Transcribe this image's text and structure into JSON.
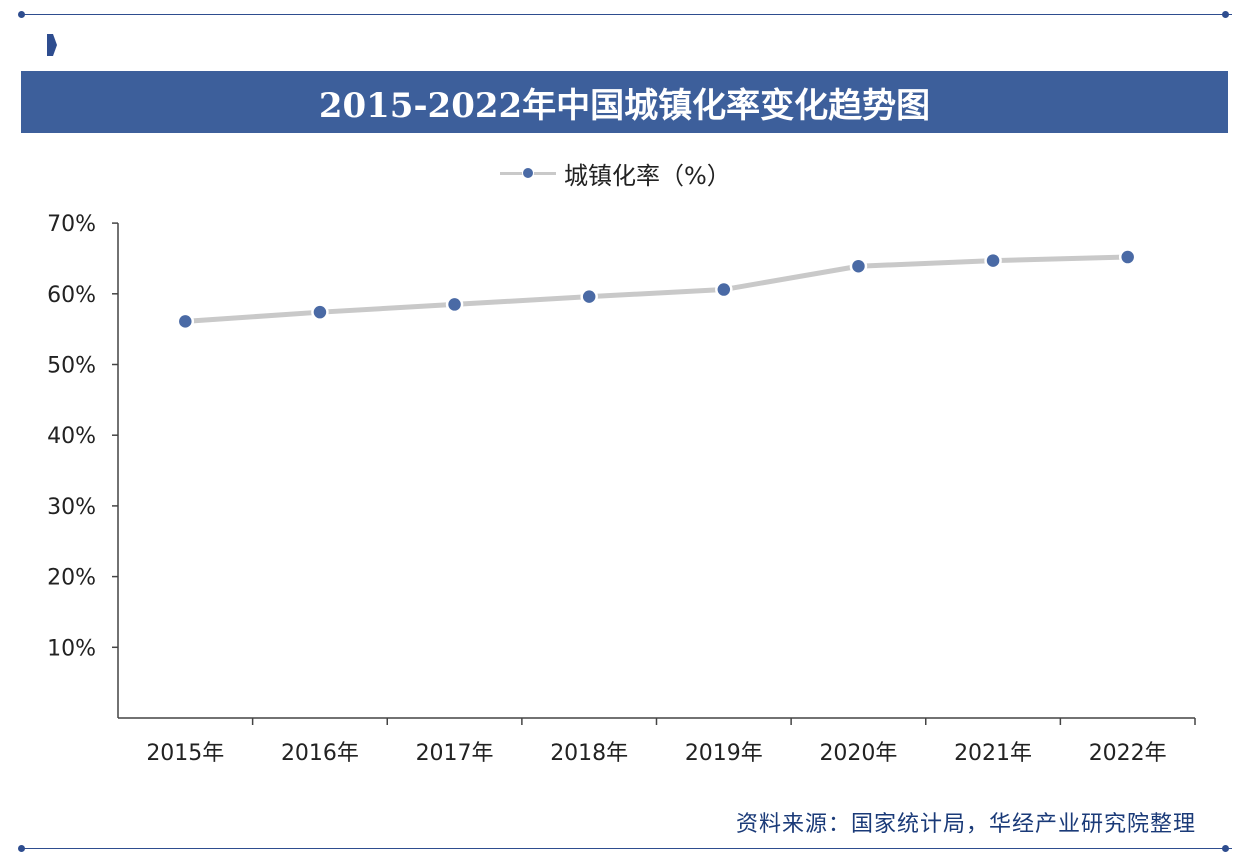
{
  "title": "2015-2022年中国城镇化率变化趋势图",
  "legend": {
    "label": "城镇化率（%）"
  },
  "source": "资料来源：国家统计局，华经产业研究院整理",
  "colors": {
    "title_bar": "#3d5f9b",
    "line": "#c9c9c9",
    "marker": "#4a6aa5",
    "source_text": "#1a3a78",
    "frame": "#2e4d8f"
  },
  "chart_data": {
    "type": "line",
    "title": "2015-2022年中国城镇化率变化趋势图",
    "categories": [
      "2015年",
      "2016年",
      "2017年",
      "2018年",
      "2019年",
      "2020年",
      "2021年",
      "2022年"
    ],
    "series": [
      {
        "name": "城镇化率（%）",
        "values": [
          56.1,
          57.4,
          58.5,
          59.6,
          60.6,
          63.9,
          64.7,
          65.2
        ]
      }
    ],
    "y_ticks": [
      {
        "value": 10,
        "label": "10%"
      },
      {
        "value": 20,
        "label": "20%"
      },
      {
        "value": 30,
        "label": "30%"
      },
      {
        "value": 40,
        "label": "40%"
      },
      {
        "value": 50,
        "label": "50%"
      },
      {
        "value": 60,
        "label": "60%"
      },
      {
        "value": 70,
        "label": "70%"
      }
    ],
    "ylim": [
      0,
      70
    ],
    "xlabel": "",
    "ylabel": "",
    "grid": false,
    "legend_position": "top-center"
  }
}
